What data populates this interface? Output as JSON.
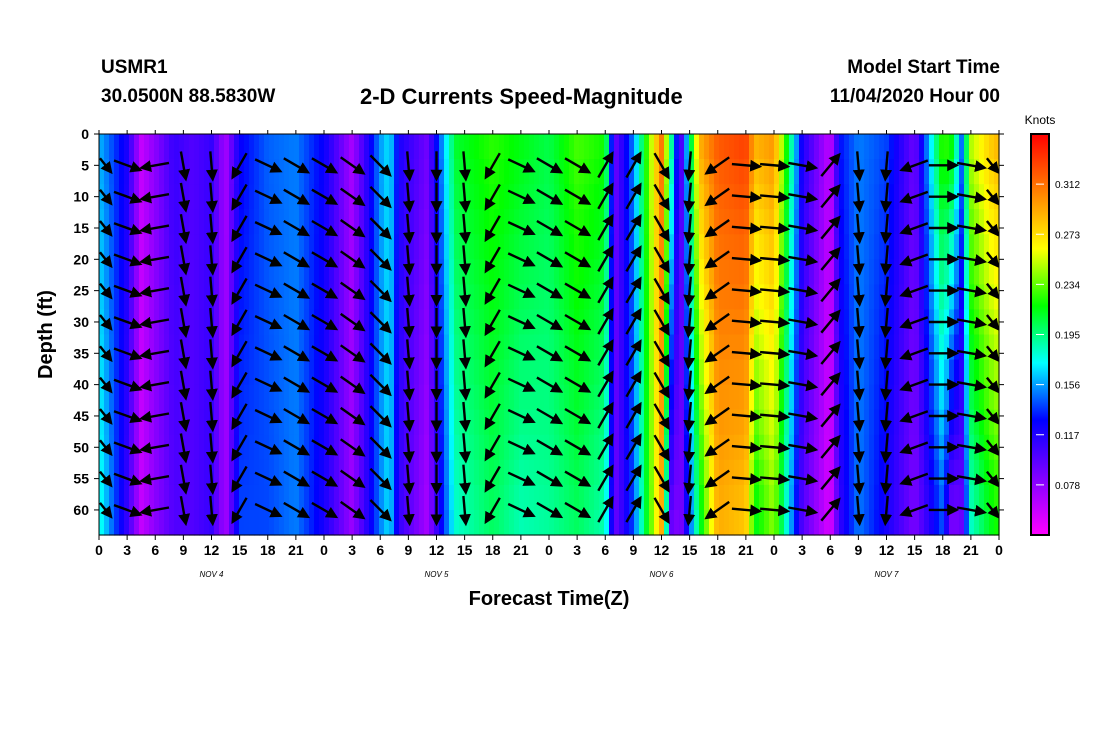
{
  "header": {
    "station": "USMR1",
    "coords": "30.0500N 88.5830W",
    "title": "2-D Currents Speed-Magnitude",
    "model_start_label": "Model Start Time",
    "model_start_value": "11/04/2020 Hour 00"
  },
  "chart_data": {
    "type": "heatmap",
    "title": "2-D Currents Speed-Magnitude",
    "xlabel": "Forecast Time(Z)",
    "ylabel": "Depth (ft)",
    "x_range_hours": [
      0,
      96
    ],
    "x_tick_step_hours": 3,
    "x_tick_labels": [
      "0",
      "3",
      "6",
      "9",
      "12",
      "15",
      "18",
      "21",
      "0",
      "3",
      "6",
      "9",
      "12",
      "15",
      "18",
      "21",
      "0",
      "3",
      "6",
      "9",
      "12",
      "15",
      "18",
      "21",
      "0",
      "3",
      "6",
      "9",
      "12",
      "15",
      "18",
      "21",
      "0"
    ],
    "day_labels": [
      {
        "label": "NOV  4",
        "hour": 12
      },
      {
        "label": "NOV  5",
        "hour": 36
      },
      {
        "label": "NOV  6",
        "hour": 60
      },
      {
        "label": "NOV  7",
        "hour": 84
      }
    ],
    "y_range": [
      0,
      64
    ],
    "y_reversed": true,
    "y_ticks": [
      0,
      5,
      10,
      15,
      20,
      25,
      30,
      35,
      40,
      45,
      50,
      55,
      60
    ],
    "colorbar": {
      "unit": "Knots",
      "range": [
        0.039,
        0.351
      ],
      "ticks": [
        0.078,
        0.117,
        0.156,
        0.195,
        0.234,
        0.273,
        0.312
      ],
      "tick_labels": [
        "0.078",
        "0.117",
        "0.156",
        "0.195",
        "0.234",
        "0.273",
        "0.312"
      ],
      "colors": [
        "#ff00ff",
        "#8000ff",
        "#0000ff",
        "#00ffff",
        "#00ff00",
        "#ffff00",
        "#ff8000",
        "#ff0000"
      ]
    },
    "speed_profile": {
      "hours": [
        0,
        3,
        4.5,
        6,
        8,
        10,
        12,
        13.5,
        15,
        18,
        21,
        24,
        27,
        30,
        31,
        32,
        35,
        38,
        42,
        45,
        48,
        51,
        54,
        55,
        57,
        60,
        61,
        62,
        64,
        66,
        69,
        70,
        72,
        75,
        78,
        79,
        81,
        84,
        87,
        90,
        91,
        92,
        93,
        95,
        96
      ],
      "speed_surface": [
        0.16,
        0.12,
        0.06,
        0.08,
        0.11,
        0.1,
        0.11,
        0.07,
        0.125,
        0.145,
        0.15,
        0.125,
        0.07,
        0.155,
        0.17,
        0.12,
        0.09,
        0.21,
        0.225,
        0.215,
        0.205,
        0.23,
        0.22,
        0.09,
        0.15,
        0.31,
        0.2,
        0.09,
        0.29,
        0.32,
        0.33,
        0.29,
        0.3,
        0.12,
        0.06,
        0.13,
        0.15,
        0.14,
        0.09,
        0.23,
        0.22,
        0.15,
        0.25,
        0.28,
        0.29
      ],
      "speed_bottom": [
        0.18,
        0.11,
        0.06,
        0.08,
        0.1,
        0.1,
        0.11,
        0.07,
        0.14,
        0.14,
        0.15,
        0.12,
        0.075,
        0.15,
        0.17,
        0.11,
        0.07,
        0.18,
        0.2,
        0.185,
        0.19,
        0.2,
        0.185,
        0.09,
        0.14,
        0.29,
        0.09,
        0.08,
        0.2,
        0.29,
        0.28,
        0.21,
        0.24,
        0.1,
        0.05,
        0.11,
        0.15,
        0.12,
        0.085,
        0.14,
        0.08,
        0.09,
        0.18,
        0.21,
        0.22
      ]
    },
    "vector_field": {
      "hours": [
        0,
        3,
        6,
        9,
        12,
        15,
        18,
        21,
        24,
        27,
        30,
        33,
        36,
        39,
        42,
        45,
        48,
        51,
        54,
        57,
        60,
        63,
        66,
        69,
        72,
        75,
        78,
        81,
        84,
        87,
        90,
        93,
        96
      ],
      "depths": [
        5,
        10,
        15,
        20,
        25,
        30,
        35,
        40,
        45,
        50,
        55,
        60
      ],
      "direction_deg": [
        120,
        110,
        260,
        170,
        175,
        210,
        115,
        120,
        120,
        125,
        135,
        175,
        180,
        175,
        210,
        115,
        120,
        120,
        30,
        30,
        150,
        185,
        235,
        95,
        95,
        100,
        40,
        175,
        185,
        250,
        90,
        100,
        120
      ]
    }
  }
}
